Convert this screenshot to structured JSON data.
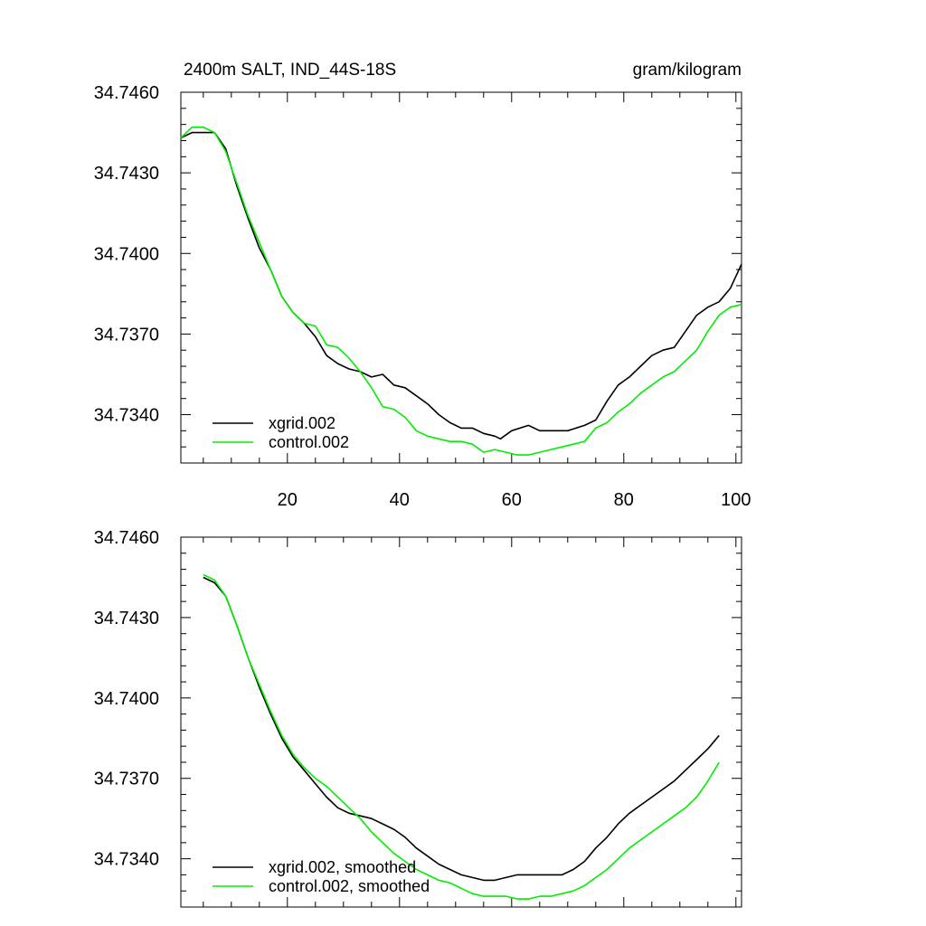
{
  "figure": {
    "title": "2400m SALT, IND_44S-18S",
    "units": "gram/kilogram"
  },
  "colors": {
    "series1": "#000000",
    "series2": "#00ee00",
    "axis": "#000000"
  },
  "chart_data": [
    {
      "type": "line",
      "title": "2400m SALT, IND_44S-18S",
      "units_label": "gram/kilogram",
      "xlabel": "",
      "ylabel": "",
      "xlim": [
        1,
        101
      ],
      "ylim": [
        34.7322,
        34.746
      ],
      "xticks": [
        20,
        40,
        60,
        80,
        100
      ],
      "xtick_labels": [
        "20",
        "40",
        "60",
        "80",
        "100"
      ],
      "show_xtick_labels": true,
      "yticks": [
        34.734,
        34.737,
        34.74,
        34.743,
        34.746
      ],
      "ytick_labels": [
        "34.7340",
        "34.7370",
        "34.7400",
        "34.7430",
        "34.7460"
      ],
      "legend_position": "bottom-left",
      "series": [
        {
          "name": "xgrid.002",
          "x": [
            1,
            3,
            5,
            7,
            9,
            11,
            13,
            15,
            17,
            19,
            21,
            23,
            25,
            27,
            29,
            31,
            33,
            35,
            37,
            39,
            41,
            43,
            45,
            47,
            49,
            51,
            53,
            55,
            57,
            58,
            60,
            63,
            65,
            67,
            70,
            73,
            75,
            77,
            79,
            81,
            83,
            85,
            87,
            89,
            91,
            93,
            95,
            97,
            99,
            101
          ],
          "values": [
            34.7443,
            34.7445,
            34.7445,
            34.7445,
            34.7439,
            34.7425,
            34.7413,
            34.7402,
            34.7394,
            34.7384,
            34.7378,
            34.7374,
            34.7369,
            34.7362,
            34.7359,
            34.7357,
            34.7356,
            34.7354,
            34.7355,
            34.7351,
            34.735,
            34.7347,
            34.7344,
            34.734,
            34.7337,
            34.7335,
            34.7335,
            34.7333,
            34.7332,
            34.7331,
            34.7334,
            34.7336,
            34.7334,
            34.7334,
            34.7334,
            34.7336,
            34.7338,
            34.7345,
            34.7351,
            34.7354,
            34.7358,
            34.7362,
            34.7364,
            34.7365,
            34.7371,
            34.7377,
            34.738,
            34.7382,
            34.7387,
            34.7396
          ]
        },
        {
          "name": "control.002",
          "x": [
            1,
            3,
            5,
            7,
            9,
            11,
            13,
            15,
            17,
            19,
            21,
            23,
            25,
            27,
            29,
            31,
            33,
            35,
            37,
            39,
            41,
            43,
            45,
            47,
            49,
            51,
            53,
            55,
            57,
            59,
            61,
            63,
            65,
            67,
            69,
            71,
            73,
            75,
            77,
            79,
            81,
            83,
            85,
            87,
            89,
            91,
            93,
            95,
            97,
            99,
            101
          ],
          "values": [
            34.7443,
            34.7447,
            34.7447,
            34.7445,
            34.7438,
            34.7426,
            34.7414,
            34.7404,
            34.7394,
            34.7384,
            34.7378,
            34.7374,
            34.7373,
            34.7366,
            34.7365,
            34.7361,
            34.7356,
            34.735,
            34.7343,
            34.7342,
            34.7339,
            34.7334,
            34.7332,
            34.7331,
            34.733,
            34.733,
            34.7329,
            34.7326,
            34.7327,
            34.7326,
            34.7325,
            34.7325,
            34.7326,
            34.7327,
            34.7328,
            34.7329,
            34.733,
            34.7335,
            34.7337,
            34.7341,
            34.7344,
            34.7348,
            34.7351,
            34.7354,
            34.7356,
            34.736,
            34.7364,
            34.7371,
            34.7377,
            34.738,
            34.7381
          ]
        }
      ]
    },
    {
      "type": "line",
      "title": "",
      "xlabel": "",
      "ylabel": "",
      "xlim": [
        1,
        101
      ],
      "ylim": [
        34.7322,
        34.746
      ],
      "xticks": [
        20,
        40,
        60,
        80,
        100
      ],
      "xtick_labels": [
        "20",
        "40",
        "60",
        "80",
        "100"
      ],
      "show_xtick_labels": false,
      "yticks": [
        34.734,
        34.737,
        34.74,
        34.743,
        34.746
      ],
      "ytick_labels": [
        "34.7340",
        "34.7370",
        "34.7400",
        "34.7430",
        "34.7460"
      ],
      "legend_position": "bottom-left",
      "series": [
        {
          "name": "xgrid.002, smoothed",
          "x": [
            5,
            7,
            9,
            11,
            13,
            15,
            17,
            19,
            21,
            23,
            25,
            27,
            29,
            31,
            33,
            35,
            37,
            39,
            41,
            43,
            45,
            47,
            49,
            51,
            53,
            55,
            57,
            59,
            61,
            63,
            65,
            67,
            69,
            71,
            73,
            75,
            77,
            79,
            81,
            83,
            85,
            87,
            89,
            91,
            93,
            95,
            97
          ],
          "values": [
            34.7445,
            34.7443,
            34.7438,
            34.7427,
            34.7415,
            34.7404,
            34.7394,
            34.7385,
            34.7378,
            34.7373,
            34.7368,
            34.7363,
            34.7359,
            34.7357,
            34.7356,
            34.7355,
            34.7353,
            34.7351,
            34.7348,
            34.7344,
            34.7341,
            34.7338,
            34.7336,
            34.7334,
            34.7333,
            34.7332,
            34.7332,
            34.7333,
            34.7334,
            34.7334,
            34.7334,
            34.7334,
            34.7334,
            34.7336,
            34.7339,
            34.7344,
            34.7348,
            34.7353,
            34.7357,
            34.736,
            34.7363,
            34.7366,
            34.7369,
            34.7373,
            34.7377,
            34.7381,
            34.7386
          ]
        },
        {
          "name": "control.002, smoothed",
          "x": [
            5,
            7,
            9,
            11,
            13,
            15,
            17,
            19,
            21,
            23,
            25,
            27,
            29,
            31,
            33,
            35,
            37,
            39,
            41,
            43,
            45,
            47,
            49,
            51,
            53,
            55,
            57,
            59,
            61,
            63,
            65,
            67,
            69,
            71,
            73,
            75,
            77,
            79,
            81,
            83,
            85,
            87,
            89,
            91,
            93,
            95,
            97
          ],
          "values": [
            34.7446,
            34.7444,
            34.7438,
            34.7427,
            34.7415,
            34.7405,
            34.7395,
            34.7386,
            34.7379,
            34.7374,
            34.737,
            34.7367,
            34.7363,
            34.7359,
            34.7355,
            34.735,
            34.7346,
            34.7342,
            34.7339,
            34.7336,
            34.7334,
            34.7332,
            34.7331,
            34.7329,
            34.7327,
            34.7326,
            34.7326,
            34.7326,
            34.7325,
            34.7325,
            34.7326,
            34.7326,
            34.7327,
            34.7328,
            34.733,
            34.7333,
            34.7336,
            34.734,
            34.7344,
            34.7347,
            34.735,
            34.7353,
            34.7356,
            34.7359,
            34.7363,
            34.7369,
            34.7376
          ]
        }
      ]
    }
  ]
}
